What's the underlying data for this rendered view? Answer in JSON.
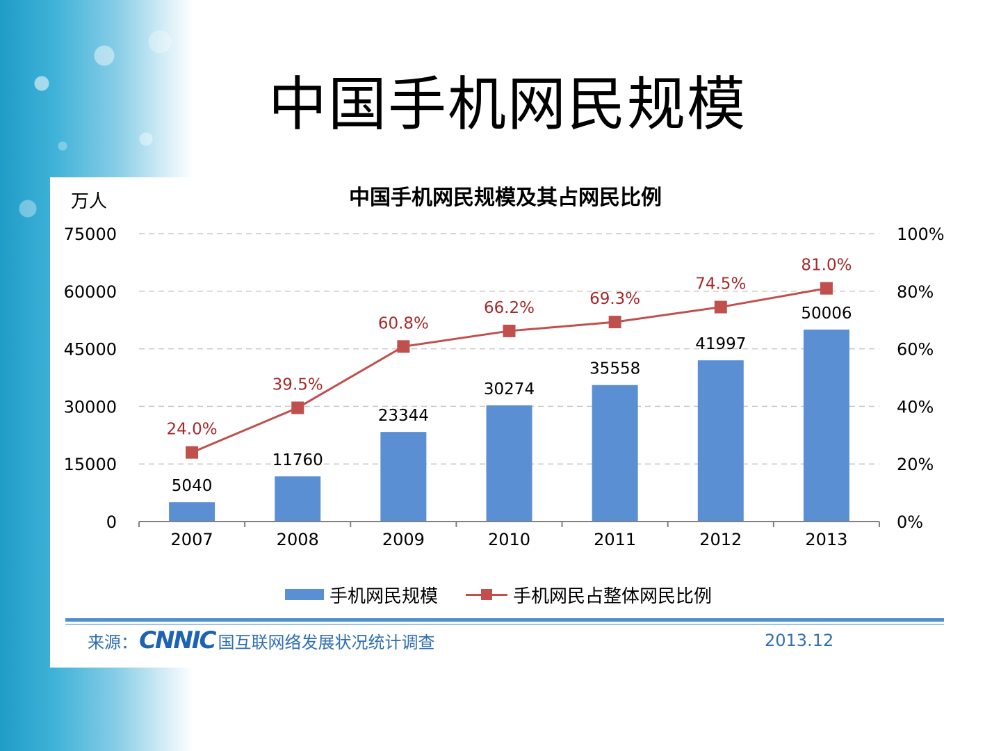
{
  "slide": {
    "title": "中国手机网民规模"
  },
  "chart_data": {
    "type": "bar",
    "title": "中国手机网民规模及其占网民比例",
    "ylabel_left": "万人",
    "categories": [
      "2007",
      "2008",
      "2009",
      "2010",
      "2011",
      "2012",
      "2013"
    ],
    "series": [
      {
        "name": "手机网民规模",
        "type": "bar",
        "axis": "left",
        "values": [
          5040,
          11760,
          23344,
          30274,
          35558,
          41997,
          50006
        ],
        "labels": [
          "5040",
          "11760",
          "23344",
          "30274",
          "35558",
          "41997",
          "50006"
        ]
      },
      {
        "name": "手机网民占整体网民比例",
        "type": "line",
        "axis": "right",
        "values": [
          24.0,
          39.5,
          60.8,
          66.2,
          69.3,
          74.5,
          81.0
        ],
        "labels": [
          "24.0%",
          "39.5%",
          "60.8%",
          "66.2%",
          "69.3%",
          "74.5%",
          "81.0%"
        ]
      }
    ],
    "ylim_left": [
      0,
      75000
    ],
    "yticks_left": [
      "0",
      "15000",
      "30000",
      "45000",
      "60000",
      "75000"
    ],
    "ylim_right": [
      0,
      100
    ],
    "yticks_right": [
      "0%",
      "20%",
      "40%",
      "60%",
      "80%",
      "100%"
    ],
    "grid": true,
    "legend_position": "bottom",
    "colors": {
      "bar": "#5b8fd4",
      "line": "#c0504d",
      "line_label": "#a52a2a",
      "grid": "#c8c8c8"
    }
  },
  "footer": {
    "source_prefix": "来源：",
    "logo_text": "CNNIC",
    "source_text": "国互联网络发展状况统计调查",
    "date": "2013.12"
  }
}
